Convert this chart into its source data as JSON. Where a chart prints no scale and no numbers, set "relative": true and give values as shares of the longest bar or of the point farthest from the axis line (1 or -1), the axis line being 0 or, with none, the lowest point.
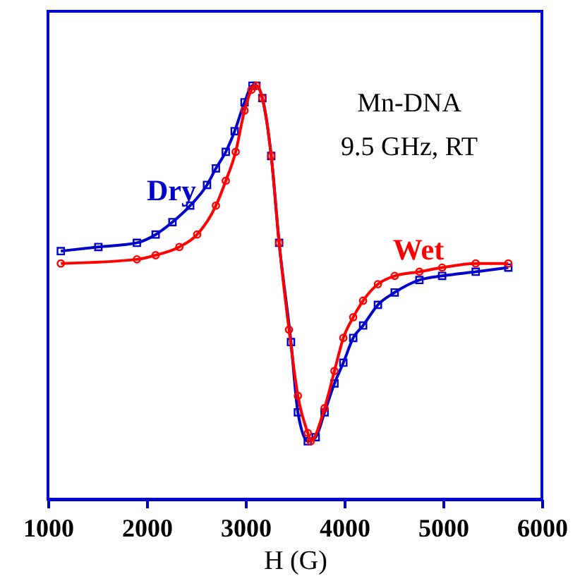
{
  "chart_data": {
    "type": "line",
    "relative": true,
    "xlabel": "H (G)",
    "xlim": [
      1000,
      6000
    ],
    "xticks": [
      1000,
      2000,
      3000,
      4000,
      5000,
      6000
    ],
    "grid": false,
    "line_style": "solid",
    "annotations": [
      "Mn-DNA",
      "9.5 GHz, RT"
    ],
    "series": [
      {
        "name": "Dry",
        "color": "#0000cc",
        "marker": "square",
        "x": [
          1130,
          1510,
          1900,
          2090,
          2260,
          2440,
          2610,
          2700,
          2800,
          2890,
          2990,
          3070,
          3110,
          3170,
          3260,
          3340,
          3460,
          3530,
          3630,
          3710,
          3800,
          3900,
          3990,
          4090,
          4190,
          4340,
          4510,
          4760,
          4990,
          5330,
          5660
        ],
        "values": [
          0.6,
          0.61,
          0.62,
          0.64,
          0.67,
          0.71,
          0.76,
          0.8,
          0.84,
          0.89,
          0.96,
          1.0,
          1.0,
          0.97,
          0.83,
          0.62,
          0.38,
          0.21,
          0.14,
          0.15,
          0.21,
          0.28,
          0.33,
          0.39,
          0.42,
          0.47,
          0.5,
          0.53,
          0.54,
          0.55,
          0.56
        ]
      },
      {
        "name": "Wet",
        "color": "#ff0000",
        "marker": "circle",
        "x": [
          1130,
          1900,
          2090,
          2330,
          2510,
          2700,
          2800,
          2900,
          2990,
          3060,
          3110,
          3170,
          3260,
          3340,
          3440,
          3530,
          3630,
          3660,
          3800,
          3900,
          3990,
          4090,
          4190,
          4340,
          4510,
          4760,
          4990,
          5330,
          5660
        ],
        "values": [
          0.57,
          0.58,
          0.59,
          0.61,
          0.64,
          0.71,
          0.77,
          0.84,
          0.94,
          0.99,
          1.0,
          0.97,
          0.83,
          0.62,
          0.41,
          0.25,
          0.16,
          0.14,
          0.22,
          0.31,
          0.39,
          0.44,
          0.48,
          0.52,
          0.54,
          0.55,
          0.56,
          0.57,
          0.57
        ]
      }
    ]
  }
}
